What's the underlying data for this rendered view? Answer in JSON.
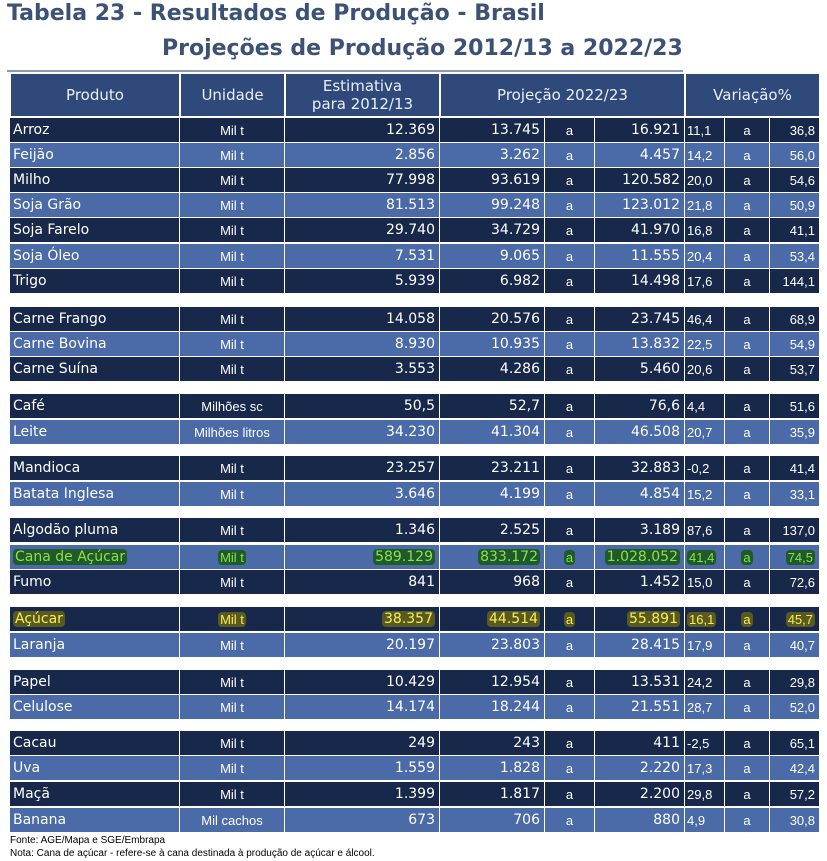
{
  "title_line1": "Tabela 23 - Resultados de Produção - Brasil",
  "title_line2": "Projeções de Produção 2012/13 a 2022/23",
  "headers": {
    "produto": "Produto",
    "unidade": "Unidade",
    "estimativa": "Estimativa para 2012/13",
    "projecao": "Projeção 2022/23",
    "variacao": "Variação%"
  },
  "colors": {
    "header": "#2f4a7a",
    "row_dark": "#17284a",
    "row_light": "#4a6aa8",
    "title": "#3b5176",
    "highlight_green": "#8ee04a",
    "highlight_yellow": "#f4f05a"
  },
  "rows": [
    {
      "produto": "Arroz",
      "unidade": "Mil t",
      "est": "12.369",
      "p1": "13.745",
      "a": "a",
      "p2": "16.921",
      "v1": "11,1",
      "a2": "a",
      "v2": "36,8"
    },
    {
      "produto": "Feijão",
      "unidade": "Mil t",
      "est": "2.856",
      "p1": "3.262",
      "a": "a",
      "p2": "4.457",
      "v1": "14,2",
      "a2": "a",
      "v2": "56,0"
    },
    {
      "produto": "Milho",
      "unidade": "Mil t",
      "est": "77.998",
      "p1": "93.619",
      "a": "a",
      "p2": "120.582",
      "v1": "20,0",
      "a2": "a",
      "v2": "54,6"
    },
    {
      "produto": "Soja Grão",
      "unidade": "Mil t",
      "est": "81.513",
      "p1": "99.248",
      "a": "a",
      "p2": "123.012",
      "v1": "21,8",
      "a2": "a",
      "v2": "50,9"
    },
    {
      "produto": "Soja Farelo",
      "unidade": "Mil t",
      "est": "29.740",
      "p1": "34.729",
      "a": "a",
      "p2": "41.970",
      "v1": "16,8",
      "a2": "a",
      "v2": "41,1"
    },
    {
      "produto": "Soja Óleo",
      "unidade": "Mil t",
      "est": "7.531",
      "p1": "9.065",
      "a": "a",
      "p2": "11.555",
      "v1": "20,4",
      "a2": "a",
      "v2": "53,4"
    },
    {
      "produto": "Trigo",
      "unidade": "Mil t",
      "est": "5.939",
      "p1": "6.982",
      "a": "a",
      "p2": "14.498",
      "v1": "17,6",
      "a2": "a",
      "v2": "144,1"
    },
    {
      "produto": "Carne Frango",
      "unidade": "Mil t",
      "est": "14.058",
      "p1": "20.576",
      "a": "a",
      "p2": "23.745",
      "v1": "46,4",
      "a2": "a",
      "v2": "68,9"
    },
    {
      "produto": "Carne Bovina",
      "unidade": "Mil t",
      "est": "8.930",
      "p1": "10.935",
      "a": "a",
      "p2": "13.832",
      "v1": "22,5",
      "a2": "a",
      "v2": "54,9"
    },
    {
      "produto": "Carne Suína",
      "unidade": "Mil t",
      "est": "3.553",
      "p1": "4.286",
      "a": "a",
      "p2": "5.460",
      "v1": "20,6",
      "a2": "a",
      "v2": "53,7"
    },
    {
      "produto": "Café",
      "unidade": "Milhões sc",
      "est": "50,5",
      "p1": "52,7",
      "a": "a",
      "p2": "76,6",
      "v1": "4,4",
      "a2": "a",
      "v2": "51,6"
    },
    {
      "produto": "Leite",
      "unidade": "Milhões litros",
      "est": "34.230",
      "p1": "41.304",
      "a": "a",
      "p2": "46.508",
      "v1": "20,7",
      "a2": "a",
      "v2": "35,9"
    },
    {
      "produto": "Mandioca",
      "unidade": "Mil t",
      "est": "23.257",
      "p1": "23.211",
      "a": "a",
      "p2": "32.883",
      "v1": "-0,2",
      "a2": "a",
      "v2": "41,4"
    },
    {
      "produto": "Batata Inglesa",
      "unidade": "Mil t",
      "est": "3.646",
      "p1": "4.199",
      "a": "a",
      "p2": "4.854",
      "v1": "15,2",
      "a2": "a",
      "v2": "33,1"
    },
    {
      "produto": "Algodão pluma",
      "unidade": "Mil t",
      "est": "1.346",
      "p1": "2.525",
      "a": "a",
      "p2": "3.189",
      "v1": "87,6",
      "a2": "a",
      "v2": "137,0"
    },
    {
      "produto": "Cana de Açúcar",
      "unidade": "Mil t",
      "est": "589.129",
      "p1": "833.172",
      "a": "a",
      "p2": "1.028.052",
      "v1": "41,4",
      "a2": "a",
      "v2": "74,5"
    },
    {
      "produto": "Fumo",
      "unidade": "Mil t",
      "est": "841",
      "p1": "968",
      "a": "a",
      "p2": "1.452",
      "v1": "15,0",
      "a2": "a",
      "v2": "72,6"
    },
    {
      "produto": "Açúcar",
      "unidade": "Mil t",
      "est": "38.357",
      "p1": "44.514",
      "a": "a",
      "p2": "55.891",
      "v1": "16,1",
      "a2": "a",
      "v2": "45,7"
    },
    {
      "produto": "Laranja",
      "unidade": "Mil t",
      "est": "20.197",
      "p1": "23.803",
      "a": "a",
      "p2": "28.415",
      "v1": "17,9",
      "a2": "a",
      "v2": "40,7"
    },
    {
      "produto": "Papel",
      "unidade": "Mil t",
      "est": "10.429",
      "p1": "12.954",
      "a": "a",
      "p2": "13.531",
      "v1": "24,2",
      "a2": "a",
      "v2": "29,8"
    },
    {
      "produto": "Celulose",
      "unidade": "Mil t",
      "est": "14.174",
      "p1": "18.244",
      "a": "a",
      "p2": "21.551",
      "v1": "28,7",
      "a2": "a",
      "v2": "52,0"
    },
    {
      "produto": "Cacau",
      "unidade": "Mil t",
      "est": "249",
      "p1": "243",
      "a": "a",
      "p2": "411",
      "v1": "-2,5",
      "a2": "a",
      "v2": "65,1"
    },
    {
      "produto": "Uva",
      "unidade": "Mil t",
      "est": "1.559",
      "p1": "1.828",
      "a": "a",
      "p2": "2.220",
      "v1": "17,3",
      "a2": "a",
      "v2": "42,4"
    },
    {
      "produto": "Maçã",
      "unidade": "Mil t",
      "est": "1.399",
      "p1": "1.817",
      "a": "a",
      "p2": "2.200",
      "v1": "29,8",
      "a2": "a",
      "v2": "57,2"
    },
    {
      "produto": "Banana",
      "unidade": "Mil cachos",
      "est": "673",
      "p1": "706",
      "a": "a",
      "p2": "880",
      "v1": "4,9",
      "a2": "a",
      "v2": "30,8"
    }
  ],
  "footnote_source": "Fonte: AGE/Mapa e SGE/Embrapa",
  "footnote_note": "Nota: Cana de açúcar - refere-se à cana destinada à produção de açúcar e álcool."
}
